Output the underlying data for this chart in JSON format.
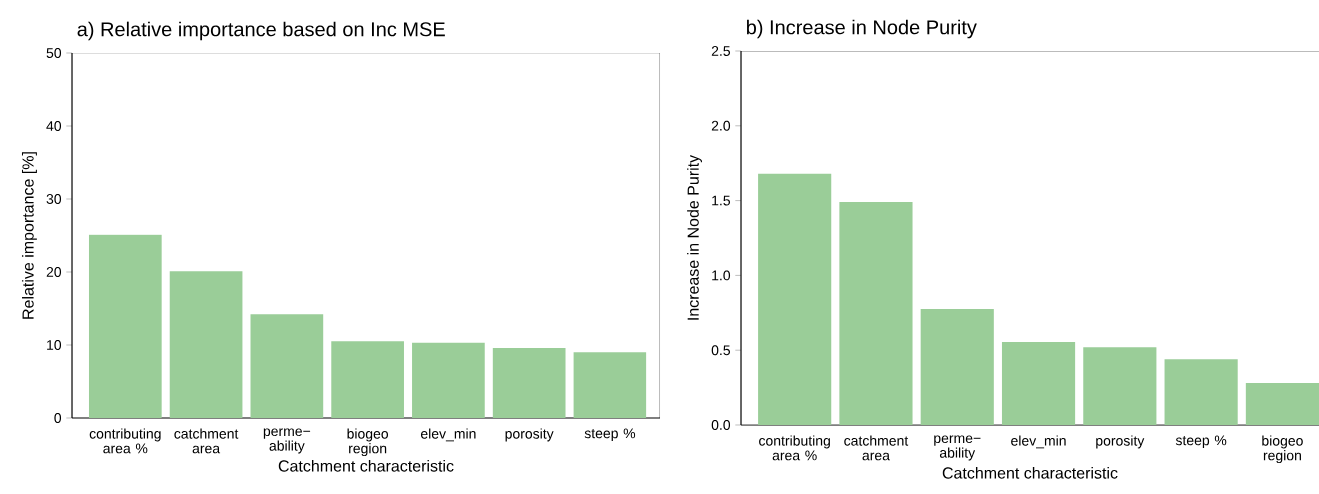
{
  "chart_data": [
    {
      "type": "bar",
      "title": "a) Relative importance based on Inc MSE",
      "xlabel": "Catchment characteristic",
      "ylabel": "Relative importance [%]",
      "categories": [
        "contributing area %",
        "catchment area",
        "perme− ability",
        "biogeo region",
        "elev_min",
        "porosity",
        "steep %"
      ],
      "values": [
        25.1,
        20.1,
        14.2,
        10.5,
        10.3,
        9.6,
        9.0
      ],
      "color": "#9acd98",
      "ylim": [
        0,
        50
      ],
      "yticks": [
        0,
        10,
        20,
        30,
        40,
        50
      ]
    },
    {
      "type": "bar",
      "title": "b) Increase in Node Purity",
      "xlabel": "Catchment characteristic",
      "ylabel": "Increase in Node Purity",
      "categories": [
        "contributing area %",
        "catchment area",
        "perme− ability",
        "elev_min",
        "porosity",
        "steep %",
        "biogeo region"
      ],
      "values": [
        1.68,
        1.49,
        0.775,
        0.555,
        0.52,
        0.44,
        0.28
      ],
      "color": "#9acd98",
      "ylim": [
        0,
        2.5
      ],
      "yticks": [
        {
          "value": 0,
          "label": "0.0"
        },
        {
          "value": 0.5,
          "label": "0.5"
        },
        {
          "value": 1,
          "label": "1.0"
        },
        {
          "value": 1.5,
          "label": "1.5"
        },
        {
          "value": 2,
          "label": "2.0"
        },
        {
          "value": 2.5,
          "label": "2.5"
        }
      ]
    }
  ]
}
